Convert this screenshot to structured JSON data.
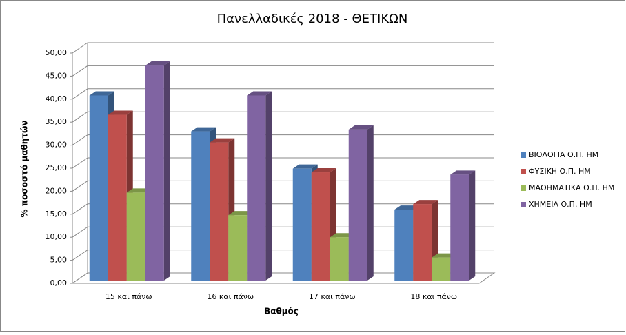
{
  "chart_data": {
    "type": "bar3d",
    "title": "Πανελλαδικές 2018 - ΘΕΤΙΚΩΝ",
    "x_label": "Βαθμός",
    "y_label": "% ποσοστό μαθητών",
    "categories": [
      "15 και πάνω",
      "16 και πάνω",
      "17 και πάνω",
      "18 και πάνω"
    ],
    "series": [
      {
        "name": "ΒΙΟΛΟΓΙΑ Ο.Π. ΗΜ",
        "color": "#4f81bd",
        "values": [
          40.2,
          32.4,
          24.3,
          15.4
        ]
      },
      {
        "name": "ΦΥΣΙΚΗ Ο.Π. ΗΜ",
        "color": "#c0504d",
        "values": [
          36.0,
          30.0,
          23.5,
          16.6
        ]
      },
      {
        "name": "ΜΑΘΗΜΑΤΙΚΑ Ο.Π. ΗΜ",
        "color": "#9bbb59",
        "values": [
          19.1,
          14.2,
          9.4,
          5.0
        ]
      },
      {
        "name": "ΧΗΜΕΙΑ Ο.Π. ΗΜ",
        "color": "#8064a2",
        "values": [
          46.7,
          40.2,
          32.8,
          23.0
        ]
      }
    ],
    "ylim": [
      0,
      50
    ],
    "yticks": [
      {
        "value": 0,
        "label": "0,00"
      },
      {
        "value": 5,
        "label": "5,00"
      },
      {
        "value": 10,
        "label": "10,00"
      },
      {
        "value": 15,
        "label": "15,00"
      },
      {
        "value": 20,
        "label": "20,00"
      },
      {
        "value": 25,
        "label": "25,00"
      },
      {
        "value": 30,
        "label": "30,00"
      },
      {
        "value": 35,
        "label": "35,00"
      },
      {
        "value": 40,
        "label": "40,00"
      },
      {
        "value": 45,
        "label": "45,00"
      },
      {
        "value": 50,
        "label": "50,00"
      }
    ],
    "grid": true,
    "legend": "right"
  }
}
